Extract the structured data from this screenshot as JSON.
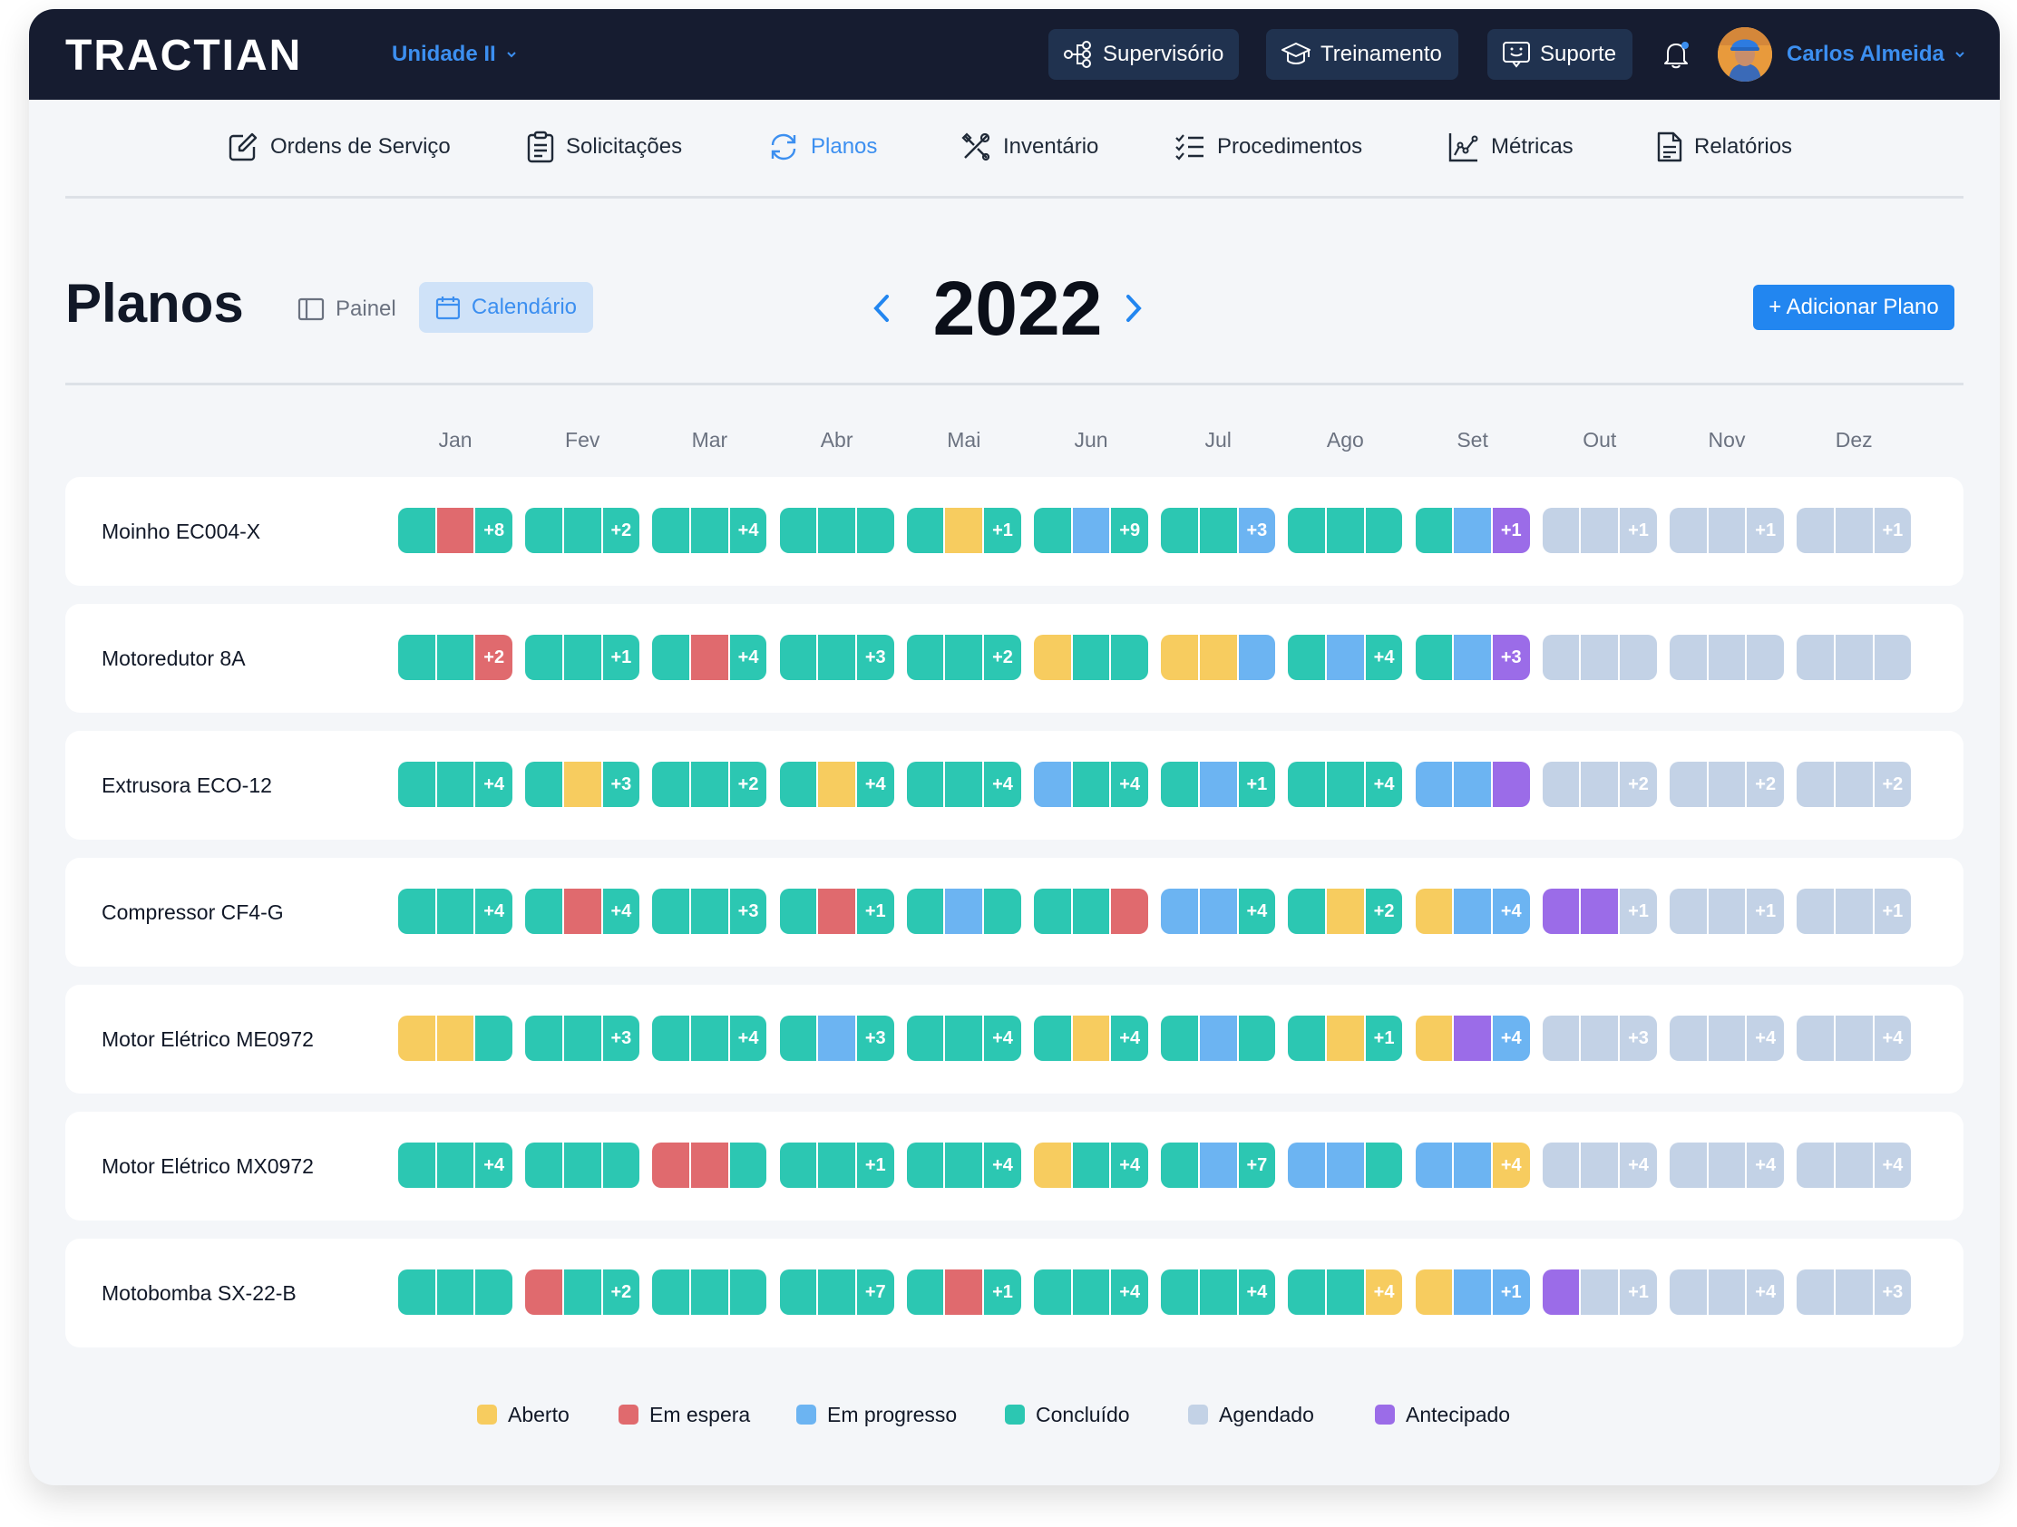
{
  "app": {
    "logo": "TRACTIAN",
    "unit": "Unidade II",
    "buttons": [
      "Supervisório",
      "Treinamento",
      "Suporte"
    ],
    "user_name": "Carlos Almeida"
  },
  "nav": [
    {
      "label": "Ordens de Serviço",
      "icon": "edit-icon"
    },
    {
      "label": "Solicitações",
      "icon": "clipboard-icon"
    },
    {
      "label": "Planos",
      "icon": "refresh-icon",
      "active": true
    },
    {
      "label": "Inventário",
      "icon": "tools-icon"
    },
    {
      "label": "Procedimentos",
      "icon": "checklist-icon"
    },
    {
      "label": "Métricas",
      "icon": "chart-icon"
    },
    {
      "label": "Relatórios",
      "icon": "document-icon"
    }
  ],
  "page": {
    "title": "Planos",
    "view_painel": "Painel",
    "view_calendar": "Calendário",
    "year": "2022",
    "add_button": "+ Adicionar Plano"
  },
  "colors": {
    "aberto": "#f7cc5f",
    "em_espera": "#e06a6e",
    "em_progresso": "#6cb4f2",
    "concluido": "#2cc7b2",
    "agendado": "#c3d2e6",
    "antecipado": "#9b6ce8"
  },
  "months": [
    "Jan",
    "Fev",
    "Mar",
    "Abr",
    "Mai",
    "Jun",
    "Jul",
    "Ago",
    "Set",
    "Out",
    "Nov",
    "Dez"
  ],
  "rows": [
    {
      "asset": "Moinho EC004-X",
      "months": [
        {
          "s": [
            "concluido",
            "em_espera",
            "concluido"
          ],
          "more": "+8"
        },
        {
          "s": [
            "concluido",
            "concluido",
            "concluido"
          ],
          "more": "+2"
        },
        {
          "s": [
            "concluido",
            "concluido",
            "concluido"
          ],
          "more": "+4"
        },
        {
          "s": [
            "concluido",
            "concluido",
            "concluido"
          ],
          "more": ""
        },
        {
          "s": [
            "concluido",
            "aberto",
            "concluido"
          ],
          "more": "+1"
        },
        {
          "s": [
            "concluido",
            "em_progresso",
            "concluido"
          ],
          "more": "+9"
        },
        {
          "s": [
            "concluido",
            "concluido",
            "em_progresso"
          ],
          "more": "+3"
        },
        {
          "s": [
            "concluido",
            "concluido",
            "concluido"
          ],
          "more": ""
        },
        {
          "s": [
            "concluido",
            "em_progresso",
            "antecipado"
          ],
          "more": "+1"
        },
        {
          "s": [
            "agendado",
            "agendado",
            "agendado"
          ],
          "more": "+1"
        },
        {
          "s": [
            "agendado",
            "agendado",
            "agendado"
          ],
          "more": "+1"
        },
        {
          "s": [
            "agendado",
            "agendado",
            "agendado"
          ],
          "more": "+1"
        }
      ]
    },
    {
      "asset": "Motoredutor 8A",
      "months": [
        {
          "s": [
            "concluido",
            "concluido",
            "em_espera"
          ],
          "more": "+2"
        },
        {
          "s": [
            "concluido",
            "concluido",
            "concluido"
          ],
          "more": "+1"
        },
        {
          "s": [
            "concluido",
            "em_espera",
            "concluido"
          ],
          "more": "+4"
        },
        {
          "s": [
            "concluido",
            "concluido",
            "concluido"
          ],
          "more": "+3"
        },
        {
          "s": [
            "concluido",
            "concluido",
            "concluido"
          ],
          "more": "+2"
        },
        {
          "s": [
            "aberto",
            "concluido",
            "concluido"
          ],
          "more": ""
        },
        {
          "s": [
            "aberto",
            "aberto",
            "em_progresso"
          ],
          "more": ""
        },
        {
          "s": [
            "concluido",
            "em_progresso",
            "concluido"
          ],
          "more": "+4"
        },
        {
          "s": [
            "concluido",
            "em_progresso",
            "antecipado"
          ],
          "more": "+3"
        },
        {
          "s": [
            "agendado",
            "agendado",
            "agendado"
          ],
          "more": ""
        },
        {
          "s": [
            "agendado",
            "agendado",
            "agendado"
          ],
          "more": ""
        },
        {
          "s": [
            "agendado",
            "agendado",
            "agendado"
          ],
          "more": ""
        }
      ]
    },
    {
      "asset": "Extrusora ECO-12",
      "months": [
        {
          "s": [
            "concluido",
            "concluido",
            "concluido"
          ],
          "more": "+4"
        },
        {
          "s": [
            "concluido",
            "aberto",
            "concluido"
          ],
          "more": "+3"
        },
        {
          "s": [
            "concluido",
            "concluido",
            "concluido"
          ],
          "more": "+2"
        },
        {
          "s": [
            "concluido",
            "aberto",
            "concluido"
          ],
          "more": "+4"
        },
        {
          "s": [
            "concluido",
            "concluido",
            "concluido"
          ],
          "more": "+4"
        },
        {
          "s": [
            "em_progresso",
            "concluido",
            "concluido"
          ],
          "more": "+4"
        },
        {
          "s": [
            "concluido",
            "em_progresso",
            "concluido"
          ],
          "more": "+1"
        },
        {
          "s": [
            "concluido",
            "concluido",
            "concluido"
          ],
          "more": "+4"
        },
        {
          "s": [
            "em_progresso",
            "em_progresso",
            "antecipado"
          ],
          "more": ""
        },
        {
          "s": [
            "agendado",
            "agendado",
            "agendado"
          ],
          "more": "+2"
        },
        {
          "s": [
            "agendado",
            "agendado",
            "agendado"
          ],
          "more": "+2"
        },
        {
          "s": [
            "agendado",
            "agendado",
            "agendado"
          ],
          "more": "+2"
        }
      ]
    },
    {
      "asset": "Compressor CF4-G",
      "months": [
        {
          "s": [
            "concluido",
            "concluido",
            "concluido"
          ],
          "more": "+4"
        },
        {
          "s": [
            "concluido",
            "em_espera",
            "concluido"
          ],
          "more": "+4"
        },
        {
          "s": [
            "concluido",
            "concluido",
            "concluido"
          ],
          "more": "+3"
        },
        {
          "s": [
            "concluido",
            "em_espera",
            "concluido"
          ],
          "more": "+1"
        },
        {
          "s": [
            "concluido",
            "em_progresso",
            "concluido"
          ],
          "more": ""
        },
        {
          "s": [
            "concluido",
            "concluido",
            "em_espera"
          ],
          "more": ""
        },
        {
          "s": [
            "em_progresso",
            "em_progresso",
            "concluido"
          ],
          "more": "+4"
        },
        {
          "s": [
            "concluido",
            "aberto",
            "concluido"
          ],
          "more": "+2"
        },
        {
          "s": [
            "aberto",
            "em_progresso",
            "em_progresso"
          ],
          "more": "+4"
        },
        {
          "s": [
            "antecipado",
            "antecipado",
            "agendado"
          ],
          "more": "+1"
        },
        {
          "s": [
            "agendado",
            "agendado",
            "agendado"
          ],
          "more": "+1"
        },
        {
          "s": [
            "agendado",
            "agendado",
            "agendado"
          ],
          "more": "+1"
        }
      ]
    },
    {
      "asset": "Motor Elétrico ME0972",
      "months": [
        {
          "s": [
            "aberto",
            "aberto",
            "concluido"
          ],
          "more": ""
        },
        {
          "s": [
            "concluido",
            "concluido",
            "concluido"
          ],
          "more": "+3"
        },
        {
          "s": [
            "concluido",
            "concluido",
            "concluido"
          ],
          "more": "+4"
        },
        {
          "s": [
            "concluido",
            "em_progresso",
            "concluido"
          ],
          "more": "+3"
        },
        {
          "s": [
            "concluido",
            "concluido",
            "concluido"
          ],
          "more": "+4"
        },
        {
          "s": [
            "concluido",
            "aberto",
            "concluido"
          ],
          "more": "+4"
        },
        {
          "s": [
            "concluido",
            "em_progresso",
            "concluido"
          ],
          "more": ""
        },
        {
          "s": [
            "concluido",
            "aberto",
            "concluido"
          ],
          "more": "+1"
        },
        {
          "s": [
            "aberto",
            "antecipado",
            "em_progresso"
          ],
          "more": "+4"
        },
        {
          "s": [
            "agendado",
            "agendado",
            "agendado"
          ],
          "more": "+3"
        },
        {
          "s": [
            "agendado",
            "agendado",
            "agendado"
          ],
          "more": "+4"
        },
        {
          "s": [
            "agendado",
            "agendado",
            "agendado"
          ],
          "more": "+4"
        }
      ]
    },
    {
      "asset": "Motor Elétrico MX0972",
      "months": [
        {
          "s": [
            "concluido",
            "concluido",
            "concluido"
          ],
          "more": "+4"
        },
        {
          "s": [
            "concluido",
            "concluido",
            "concluido"
          ],
          "more": ""
        },
        {
          "s": [
            "em_espera",
            "em_espera",
            "concluido"
          ],
          "more": ""
        },
        {
          "s": [
            "concluido",
            "concluido",
            "concluido"
          ],
          "more": "+1"
        },
        {
          "s": [
            "concluido",
            "concluido",
            "concluido"
          ],
          "more": "+4"
        },
        {
          "s": [
            "aberto",
            "concluido",
            "concluido"
          ],
          "more": "+4"
        },
        {
          "s": [
            "concluido",
            "em_progresso",
            "concluido"
          ],
          "more": "+7"
        },
        {
          "s": [
            "em_progresso",
            "em_progresso",
            "concluido"
          ],
          "more": ""
        },
        {
          "s": [
            "em_progresso",
            "em_progresso",
            "aberto"
          ],
          "more": "+4"
        },
        {
          "s": [
            "agendado",
            "agendado",
            "agendado"
          ],
          "more": "+4"
        },
        {
          "s": [
            "agendado",
            "agendado",
            "agendado"
          ],
          "more": "+4"
        },
        {
          "s": [
            "agendado",
            "agendado",
            "agendado"
          ],
          "more": "+4"
        }
      ]
    },
    {
      "asset": "Motobomba SX-22-B",
      "months": [
        {
          "s": [
            "concluido",
            "concluido",
            "concluido"
          ],
          "more": ""
        },
        {
          "s": [
            "em_espera",
            "concluido",
            "concluido"
          ],
          "more": "+2"
        },
        {
          "s": [
            "concluido",
            "concluido",
            "concluido"
          ],
          "more": ""
        },
        {
          "s": [
            "concluido",
            "concluido",
            "concluido"
          ],
          "more": "+7"
        },
        {
          "s": [
            "concluido",
            "em_espera",
            "concluido"
          ],
          "more": "+1"
        },
        {
          "s": [
            "concluido",
            "concluido",
            "concluido"
          ],
          "more": "+4"
        },
        {
          "s": [
            "concluido",
            "concluido",
            "concluido"
          ],
          "more": "+4"
        },
        {
          "s": [
            "concluido",
            "concluido",
            "aberto"
          ],
          "more": "+4"
        },
        {
          "s": [
            "aberto",
            "em_progresso",
            "em_progresso"
          ],
          "more": "+1"
        },
        {
          "s": [
            "antecipado",
            "agendado",
            "agendado"
          ],
          "more": "+1"
        },
        {
          "s": [
            "agendado",
            "agendado",
            "agendado"
          ],
          "more": "+4"
        },
        {
          "s": [
            "agendado",
            "agendado",
            "agendado"
          ],
          "more": "+3"
        }
      ]
    }
  ],
  "legend": [
    {
      "label": "Aberto",
      "key": "aberto"
    },
    {
      "label": "Em espera",
      "key": "em_espera"
    },
    {
      "label": "Em progresso",
      "key": "em_progresso"
    },
    {
      "label": "Concluído",
      "key": "concluido"
    },
    {
      "label": "Agendado",
      "key": "agendado"
    },
    {
      "label": "Antecipado",
      "key": "antecipado"
    }
  ]
}
